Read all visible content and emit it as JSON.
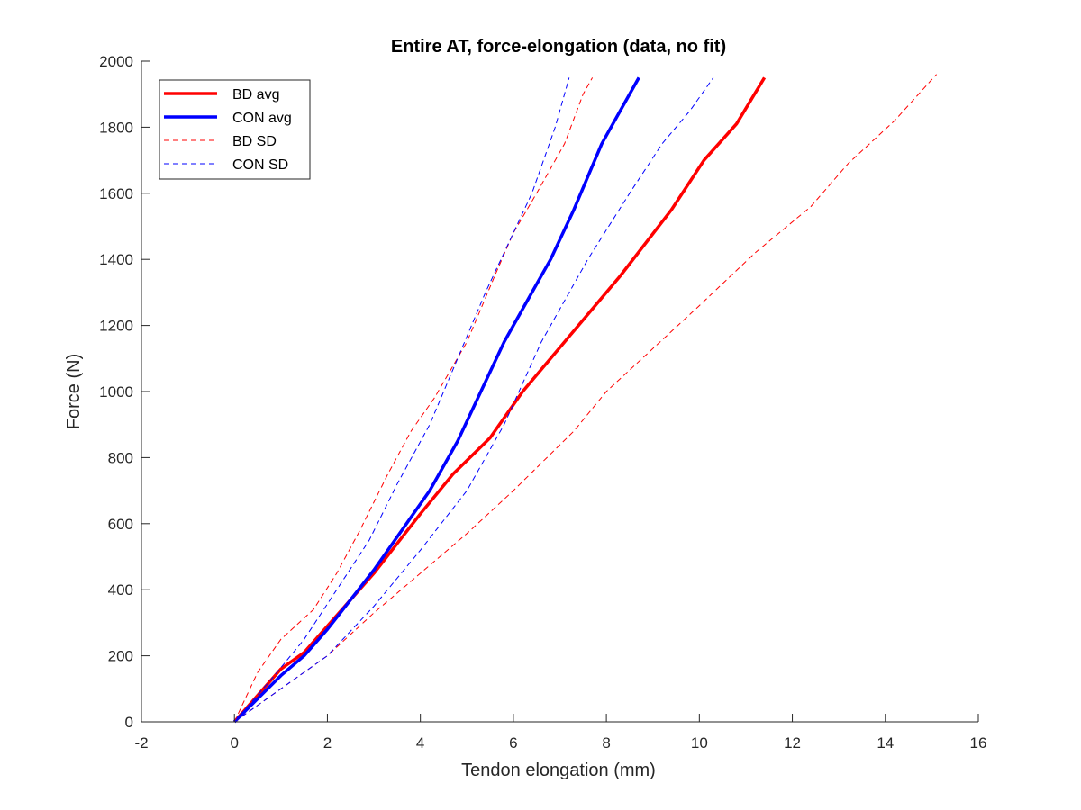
{
  "chart_data": {
    "type": "line",
    "title": "Entire AT, force-elongation (data, no fit)",
    "xlabel": "Tendon elongation (mm)",
    "ylabel": "Force (N)",
    "xlim": [
      -2,
      16
    ],
    "ylim": [
      0,
      2000
    ],
    "xticks": [
      -2,
      0,
      2,
      4,
      6,
      8,
      10,
      12,
      14,
      16
    ],
    "yticks": [
      0,
      200,
      400,
      600,
      800,
      1000,
      1200,
      1400,
      1600,
      1800,
      2000
    ],
    "grid": false,
    "legend_position": "top-left",
    "series": [
      {
        "name": "BD avg",
        "color": "#ff0000",
        "style": "solid",
        "x": [
          0,
          0.5,
          1.0,
          1.5,
          2.0,
          2.5,
          3.0,
          3.5,
          4.0,
          4.7,
          5.5,
          6.2,
          6.8,
          7.4,
          8.3,
          9.4,
          10.1,
          10.8,
          11.4
        ],
        "y": [
          0,
          80,
          160,
          210,
          290,
          370,
          450,
          540,
          630,
          750,
          860,
          1000,
          1100,
          1200,
          1350,
          1550,
          1700,
          1810,
          1950
        ]
      },
      {
        "name": "CON avg",
        "color": "#0000ff",
        "style": "solid",
        "x": [
          0,
          0.5,
          1.0,
          1.5,
          2.0,
          2.5,
          3.0,
          3.5,
          4.2,
          4.8,
          5.3,
          5.8,
          6.4,
          6.8,
          7.3,
          7.9,
          8.3,
          8.7
        ],
        "y": [
          0,
          70,
          140,
          200,
          280,
          370,
          460,
          560,
          700,
          850,
          1000,
          1150,
          1300,
          1400,
          1550,
          1750,
          1850,
          1950
        ]
      },
      {
        "name": "BD SD",
        "color": "#ff0000",
        "style": "dashed",
        "x": [
          0,
          0.5,
          1.0,
          1.7,
          2.2,
          2.7,
          3.3,
          3.8,
          4.3,
          5.0,
          5.6,
          6.0,
          6.5,
          7.1,
          7.5,
          7.7
        ],
        "y": [
          0,
          150,
          250,
          340,
          450,
          580,
          750,
          880,
          980,
          1150,
          1350,
          1480,
          1600,
          1750,
          1900,
          1950
        ]
      },
      {
        "name": "BD SD",
        "color": "#ff0000",
        "style": "dashed",
        "x": [
          0,
          1.0,
          2.0,
          3.0,
          4.0,
          5.0,
          6.0,
          7.3,
          8.0,
          9.0,
          10.0,
          11.2,
          12.4,
          13.2,
          14.2,
          15.1
        ],
        "y": [
          0,
          100,
          200,
          330,
          450,
          570,
          700,
          880,
          1000,
          1130,
          1260,
          1420,
          1560,
          1690,
          1820,
          1960
        ]
      },
      {
        "name": "CON SD",
        "color": "#0000ff",
        "style": "dashed",
        "x": [
          0,
          0.8,
          1.5,
          2.2,
          2.9,
          3.5,
          4.2,
          4.8,
          5.4,
          5.9,
          6.4,
          6.9,
          7.2
        ],
        "y": [
          0,
          130,
          250,
          400,
          550,
          720,
          900,
          1100,
          1300,
          1450,
          1600,
          1800,
          1950
        ]
      },
      {
        "name": "CON SD",
        "color": "#0000ff",
        "style": "dashed",
        "x": [
          0,
          1.0,
          2.0,
          3.0,
          4.0,
          5.0,
          5.8,
          6.6,
          7.6,
          8.5,
          9.2,
          9.8,
          10.3
        ],
        "y": [
          0,
          100,
          200,
          350,
          520,
          700,
          900,
          1150,
          1400,
          1600,
          1750,
          1850,
          1950
        ]
      }
    ],
    "legend": [
      {
        "label": "BD avg",
        "color": "#ff0000",
        "style": "solid"
      },
      {
        "label": "CON avg",
        "color": "#0000ff",
        "style": "solid"
      },
      {
        "label": "BD SD",
        "color": "#ff0000",
        "style": "dashed"
      },
      {
        "label": "CON SD",
        "color": "#0000ff",
        "style": "dashed"
      }
    ]
  }
}
